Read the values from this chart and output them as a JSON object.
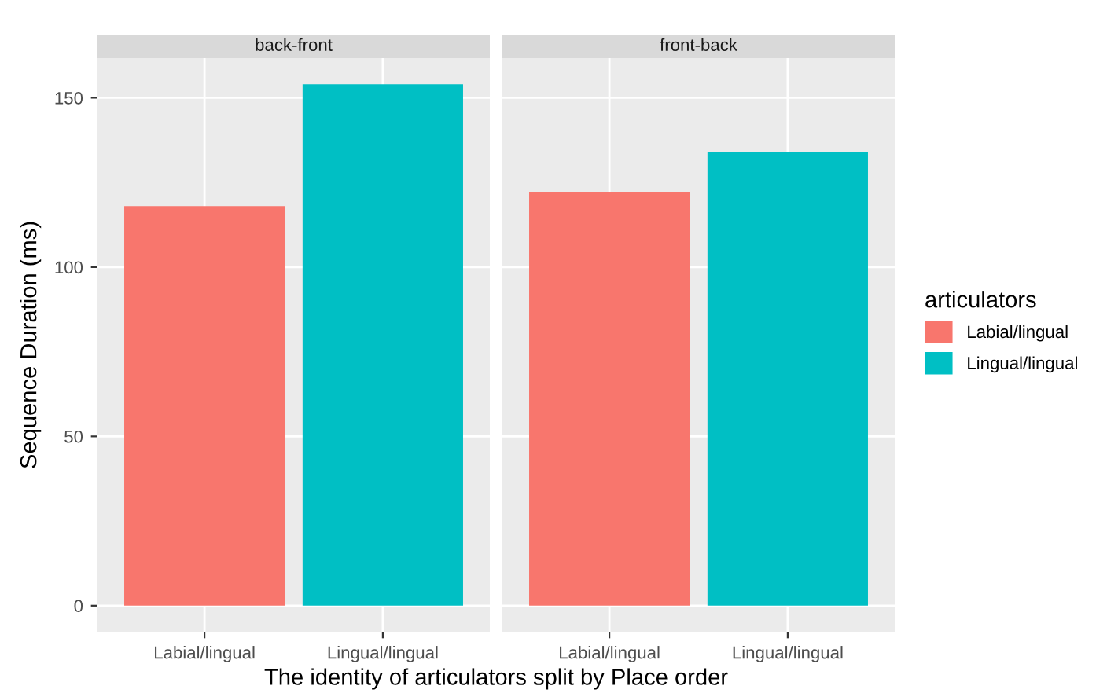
{
  "chart_data": [
    {
      "type": "bar",
      "title": "back-front",
      "categories": [
        "Labial/lingual",
        "Lingual/lingual"
      ],
      "series": [
        {
          "name": "Labial/lingual",
          "color": "#f8766d",
          "values": [
            118,
            null
          ]
        },
        {
          "name": "Lingual/lingual",
          "color": "#00bfc4",
          "values": [
            null,
            154
          ]
        }
      ],
      "ylim": [
        -7.7,
        161.7
      ],
      "yticks": [
        0,
        50,
        100,
        150
      ],
      "grid": true,
      "legend": "right",
      "legend_title": "articulators",
      "xlabel": "The identity of articulators split by Place order",
      "ylabel": "Sequence Duration (ms)"
    },
    {
      "type": "bar",
      "title": "front-back",
      "categories": [
        "Labial/lingual",
        "Lingual/lingual"
      ],
      "series": [
        {
          "name": "Labial/lingual",
          "color": "#f8766d",
          "values": [
            122,
            null
          ]
        },
        {
          "name": "Lingual/lingual",
          "color": "#00bfc4",
          "values": [
            null,
            134
          ]
        }
      ],
      "ylim": [
        -7.7,
        161.7
      ],
      "yticks": [
        0,
        50,
        100,
        150
      ],
      "grid": true,
      "tick_labels": "x",
      "legend": "right"
    }
  ]
}
